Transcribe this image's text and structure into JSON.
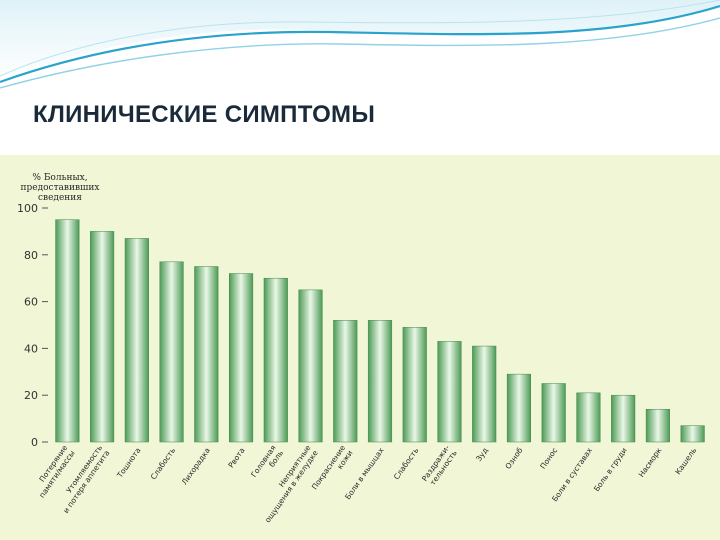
{
  "slide": {
    "title": "КЛИНИЧЕСКИЕ СИМПТОМЫ"
  },
  "colors": {
    "header_wave": "#2aa3cc",
    "panel_background": "#f1f6d6",
    "bar_edge": "#4d9a56",
    "bar_center": "#eaf7e7",
    "title_text": "#1b2a3a"
  },
  "chart_data": {
    "type": "bar",
    "ylabel_lines": [
      "% Больных,",
      "предоставивших",
      "сведения"
    ],
    "ylim": [
      0,
      100
    ],
    "yticks": [
      0,
      20,
      40,
      60,
      80,
      100
    ],
    "grid": false,
    "categories": [
      [
        "Потеряние",
        "памяти/массы"
      ],
      [
        "Утомляемость",
        "и потеря аппетита"
      ],
      [
        "Тошнота"
      ],
      [
        "Слабость"
      ],
      [
        "Лихорадка"
      ],
      [
        "Рвота"
      ],
      [
        "Головная",
        "боль"
      ],
      [
        "Неприятные",
        "ощущения в желудке"
      ],
      [
        "Покраснение",
        "кожи"
      ],
      [
        "Боли в мышцах"
      ],
      [
        "Слабость"
      ],
      [
        "Раздражи-",
        "тельность"
      ],
      [
        "Зуд"
      ],
      [
        "Озноб"
      ],
      [
        "Понос"
      ],
      [
        "Боли в суставах"
      ],
      [
        "Боль в груди"
      ],
      [
        "Насморк"
      ],
      [
        "Кашель"
      ]
    ],
    "values": [
      95,
      90,
      87,
      77,
      75,
      72,
      70,
      65,
      52,
      52,
      49,
      43,
      41,
      29,
      25,
      21,
      20,
      14,
      7
    ]
  }
}
